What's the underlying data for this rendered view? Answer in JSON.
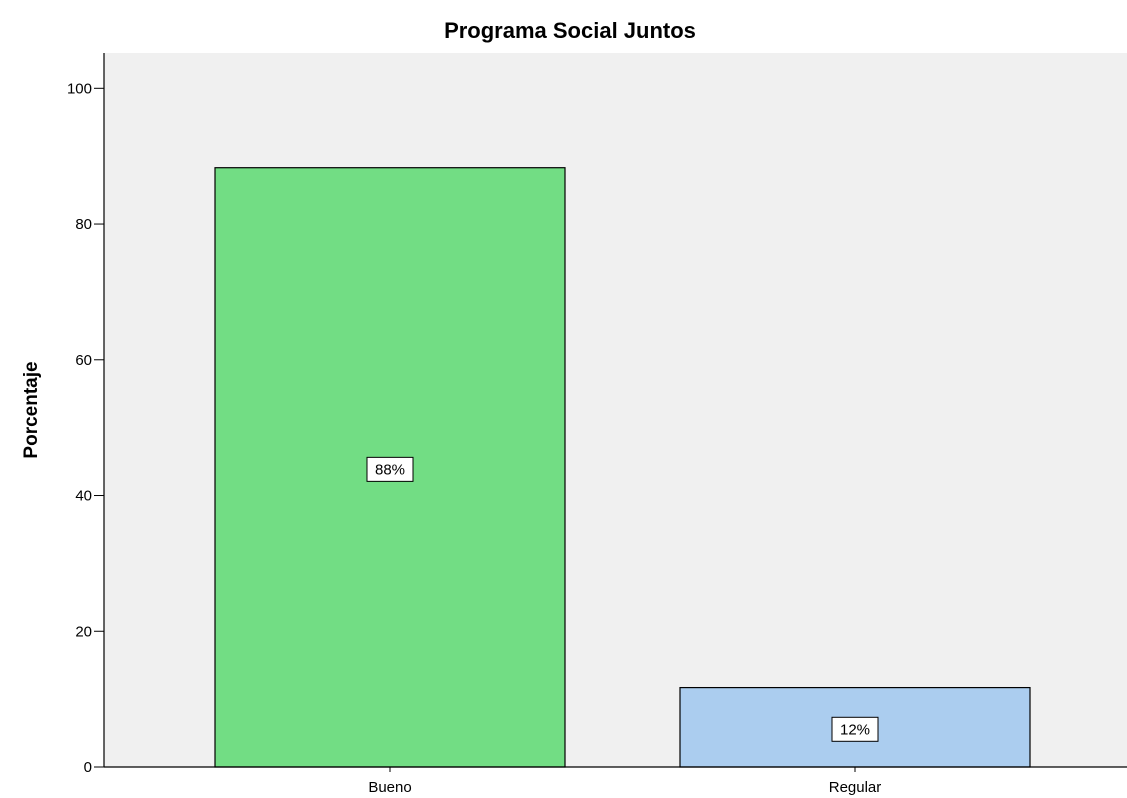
{
  "chart_data": {
    "type": "bar",
    "title": "Programa Social Juntos",
    "xlabel": "",
    "ylabel": "Porcentaje",
    "categories": [
      "Bueno",
      "Regular"
    ],
    "values": [
      88.3,
      11.7
    ],
    "data_labels": [
      "88%",
      "12%"
    ],
    "bar_colors": [
      "#72dd84",
      "#abcdef"
    ],
    "ylim": [
      0,
      105
    ],
    "yticks": [
      0,
      20,
      40,
      60,
      80,
      100
    ],
    "grid": false,
    "plot_background": "#f0f0f0"
  }
}
